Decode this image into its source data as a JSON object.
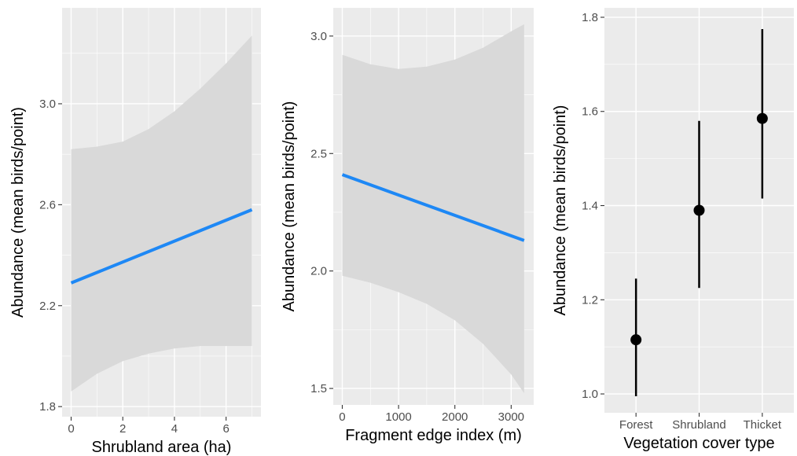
{
  "chart_data": [
    {
      "type": "line",
      "xlabel": "Shrubland area (ha)",
      "ylabel": "Abundance (mean birds/point)",
      "xlim": [
        -0.35,
        7.35
      ],
      "ylim": [
        1.76,
        3.38
      ],
      "x_ticks": [
        0,
        2,
        4,
        6
      ],
      "y_ticks": [
        1.8,
        2.2,
        2.6,
        3.0
      ],
      "grid": true,
      "fit": {
        "x": [
          0,
          7
        ],
        "y": [
          2.29,
          2.58
        ]
      },
      "ribbon": {
        "x": [
          0,
          1,
          2,
          3,
          4,
          5,
          6,
          7
        ],
        "lower": [
          1.86,
          1.93,
          1.98,
          2.01,
          2.03,
          2.04,
          2.04,
          2.04
        ],
        "upper": [
          2.82,
          2.83,
          2.85,
          2.9,
          2.97,
          3.06,
          3.16,
          3.27
        ]
      }
    },
    {
      "type": "line",
      "xlabel": "Fragment edge index (m)",
      "ylabel": "Abundance (mean birds/point)",
      "xlim": [
        -160,
        3400
      ],
      "ylim": [
        1.43,
        3.12
      ],
      "x_ticks": [
        0,
        1000,
        2000,
        3000
      ],
      "y_ticks": [
        1.5,
        2.0,
        2.5,
        3.0
      ],
      "grid": true,
      "fit": {
        "x": [
          0,
          3230
        ],
        "y": [
          2.41,
          2.13
        ]
      },
      "ribbon": {
        "x": [
          0,
          500,
          1000,
          1500,
          2000,
          2500,
          3000,
          3230
        ],
        "lower": [
          1.98,
          1.95,
          1.91,
          1.86,
          1.79,
          1.69,
          1.56,
          1.48
        ],
        "upper": [
          2.92,
          2.88,
          2.86,
          2.87,
          2.9,
          2.95,
          3.02,
          3.05
        ]
      }
    },
    {
      "type": "scatter",
      "xlabel": "Vegetation cover type",
      "ylabel": "Abundance (mean birds/point)",
      "categories": [
        "Forest",
        "Shrubland",
        "Thicket"
      ],
      "ylim": [
        0.96,
        1.82
      ],
      "y_ticks": [
        1.0,
        1.2,
        1.4,
        1.6,
        1.8
      ],
      "grid": true,
      "values": [
        1.115,
        1.39,
        1.585
      ],
      "lower": [
        0.995,
        1.225,
        1.415
      ],
      "upper": [
        1.245,
        1.58,
        1.775
      ]
    }
  ]
}
